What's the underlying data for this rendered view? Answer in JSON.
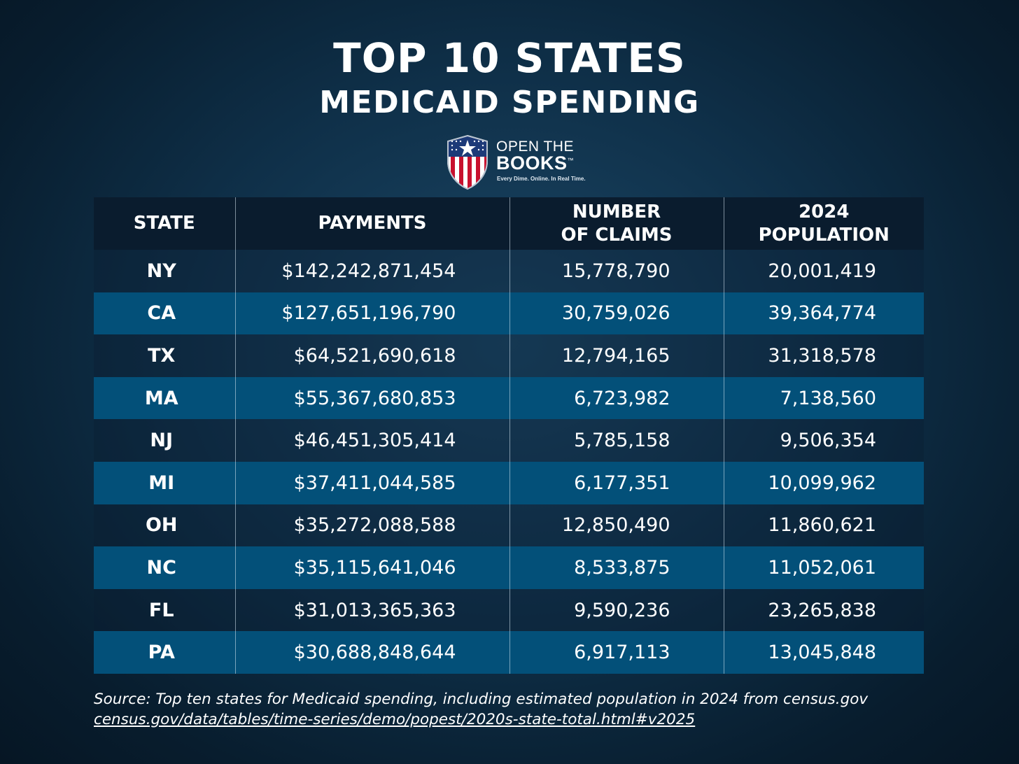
{
  "header": {
    "title": "TOP 10 STATES",
    "subtitle": "MEDICAID SPENDING"
  },
  "logo": {
    "line1": "OPEN THE",
    "line2": "BOOKS",
    "trademark": "™",
    "tagline": "Every Dime. Online. In Real Time.",
    "icon": "shield-star-stripes-icon"
  },
  "table": {
    "columns": {
      "state": "STATE",
      "payments": "PAYMENTS",
      "claims_line1": "NUMBER",
      "claims_line2": "OF CLAIMS",
      "population_line1": "2024",
      "population_line2": "POPULATION"
    },
    "rows": [
      {
        "state": "NY",
        "payments": "$142,242,871,454",
        "claims": "15,778,790",
        "population": "20,001,419"
      },
      {
        "state": "CA",
        "payments": "$127,651,196,790",
        "claims": "30,759,026",
        "population": "39,364,774"
      },
      {
        "state": "TX",
        "payments": "$64,521,690,618",
        "claims": "12,794,165",
        "population": "31,318,578"
      },
      {
        "state": "MA",
        "payments": "$55,367,680,853",
        "claims": "6,723,982",
        "population": "7,138,560"
      },
      {
        "state": "NJ",
        "payments": "$46,451,305,414",
        "claims": "5,785,158",
        "population": "9,506,354"
      },
      {
        "state": "MI",
        "payments": "$37,411,044,585",
        "claims": "6,177,351",
        "population": "10,099,962"
      },
      {
        "state": "OH",
        "payments": "$35,272,088,588",
        "claims": "12,850,490",
        "population": "11,860,621"
      },
      {
        "state": "NC",
        "payments": "$35,115,641,046",
        "claims": "8,533,875",
        "population": "11,052,061"
      },
      {
        "state": "FL",
        "payments": "$31,013,365,363",
        "claims": "9,590,236",
        "population": "23,265,838"
      },
      {
        "state": "PA",
        "payments": "$30,688,848,644",
        "claims": "6,917,113",
        "population": "13,045,848"
      }
    ]
  },
  "source": {
    "line1": "Source: Top ten states for Medicaid spending, including estimated population in 2024 from census.gov",
    "link": "census.gov/data/tables/time-series/demo/popest/2020s-state-total.html#v2025"
  },
  "colors": {
    "header_row": "#0a1c2e",
    "stripe": "#035079",
    "shield_red": "#c8102e",
    "shield_blue": "#1d3a78"
  }
}
